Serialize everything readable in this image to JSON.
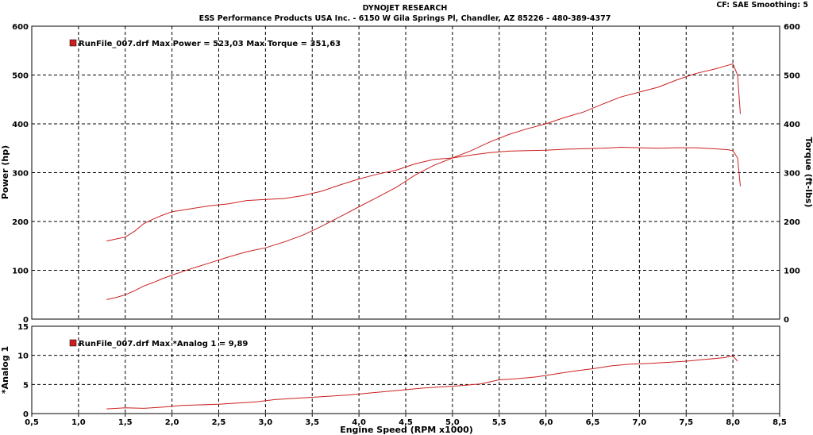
{
  "header": {
    "title": "DYNOJET RESEARCH",
    "company": "ESS Performance Products USA Inc. - 6150 W Gila Springs Pl, Chandler, AZ 85226 - 480-389-4377",
    "settings": "CF: SAE  Smoothing: 5"
  },
  "chart_data": [
    {
      "type": "line",
      "title": "",
      "xlabel": "Engine Speed (RPM x1000)",
      "ylabel": "Power (hp)",
      "ylabel_right": "Torque (ft-lbs)",
      "xlim": [
        0.5,
        8.5
      ],
      "ylim": [
        0,
        600
      ],
      "ylim_right": [
        0,
        600
      ],
      "yticks": [
        "0",
        "100",
        "200",
        "300",
        "400",
        "500",
        "600"
      ],
      "yticks_right": [
        "0",
        "100",
        "200",
        "300",
        "400",
        "500",
        "600"
      ],
      "grid": true,
      "legend_text": "RunFile_007.drf Max Power = 523,03     Max Torque = 351,63",
      "legend_color": "#cc2020",
      "series": [
        {
          "key": "power",
          "x": [
            1.3,
            1.4,
            1.5,
            1.6,
            1.7,
            1.8,
            1.9,
            2.0,
            2.2,
            2.4,
            2.6,
            2.8,
            3.0,
            3.2,
            3.4,
            3.6,
            3.8,
            4.0,
            4.2,
            4.4,
            4.6,
            4.8,
            5.0,
            5.2,
            5.4,
            5.6,
            5.8,
            6.0,
            6.2,
            6.4,
            6.6,
            6.8,
            7.0,
            7.2,
            7.4,
            7.6,
            7.8,
            7.95,
            8.0,
            8.05,
            8.08
          ],
          "values": [
            40,
            44,
            50,
            58,
            68,
            75,
            83,
            90,
            103,
            115,
            127,
            138,
            146,
            158,
            172,
            190,
            210,
            230,
            250,
            270,
            295,
            315,
            330,
            345,
            363,
            378,
            390,
            400,
            413,
            424,
            440,
            455,
            465,
            475,
            490,
            503,
            512,
            520,
            523,
            500,
            420
          ]
        },
        {
          "key": "torque",
          "x": [
            1.3,
            1.4,
            1.5,
            1.6,
            1.7,
            1.8,
            1.9,
            2.0,
            2.2,
            2.4,
            2.6,
            2.8,
            3.0,
            3.2,
            3.4,
            3.6,
            3.8,
            4.0,
            4.2,
            4.4,
            4.6,
            4.8,
            5.0,
            5.2,
            5.4,
            5.6,
            5.8,
            6.0,
            6.2,
            6.4,
            6.6,
            6.8,
            7.0,
            7.2,
            7.4,
            7.6,
            7.8,
            7.95,
            8.0,
            8.05,
            8.08
          ],
          "values": [
            160,
            164,
            168,
            180,
            196,
            205,
            213,
            220,
            226,
            232,
            236,
            243,
            245,
            247,
            253,
            262,
            275,
            287,
            297,
            305,
            318,
            327,
            330,
            336,
            341,
            344,
            345,
            346,
            348,
            349,
            350,
            352,
            351,
            350,
            351,
            351,
            349,
            347,
            345,
            330,
            272
          ]
        }
      ]
    },
    {
      "type": "line",
      "title": "",
      "xlabel": "Engine Speed (RPM x1000)",
      "ylabel": "*Analog 1",
      "xlim": [
        0.5,
        8.5
      ],
      "ylim": [
        0,
        15
      ],
      "yticks": [
        "0",
        "5",
        "10",
        "15"
      ],
      "xticks": [
        "0,5",
        "1,0",
        "1,5",
        "2,0",
        "2,5",
        "3,0",
        "3,5",
        "4,0",
        "4,5",
        "5,0",
        "5,5",
        "6,0",
        "6,5",
        "7,0",
        "7,5",
        "8,0",
        "8,5"
      ],
      "grid": true,
      "legend_text": "RunFile_007.drf Max *Analog 1 = 9,89",
      "legend_color": "#cc2020",
      "series": [
        {
          "key": "analog1",
          "x": [
            1.3,
            1.5,
            1.7,
            1.9,
            2.1,
            2.3,
            2.5,
            2.7,
            2.9,
            3.1,
            3.3,
            3.5,
            3.7,
            3.9,
            4.1,
            4.3,
            4.5,
            4.7,
            4.9,
            5.1,
            5.3,
            5.5,
            5.7,
            5.9,
            6.1,
            6.3,
            6.5,
            6.7,
            6.9,
            7.1,
            7.3,
            7.5,
            7.7,
            7.9,
            8.0,
            8.05
          ],
          "values": [
            0.8,
            1.0,
            0.9,
            1.1,
            1.4,
            1.5,
            1.6,
            1.8,
            2.0,
            2.4,
            2.6,
            2.8,
            3.0,
            3.2,
            3.5,
            3.8,
            4.1,
            4.4,
            4.6,
            4.8,
            5.1,
            5.8,
            6.0,
            6.3,
            6.8,
            7.3,
            7.7,
            8.2,
            8.5,
            8.6,
            8.8,
            9.0,
            9.3,
            9.6,
            9.9,
            9.0
          ]
        }
      ]
    }
  ]
}
